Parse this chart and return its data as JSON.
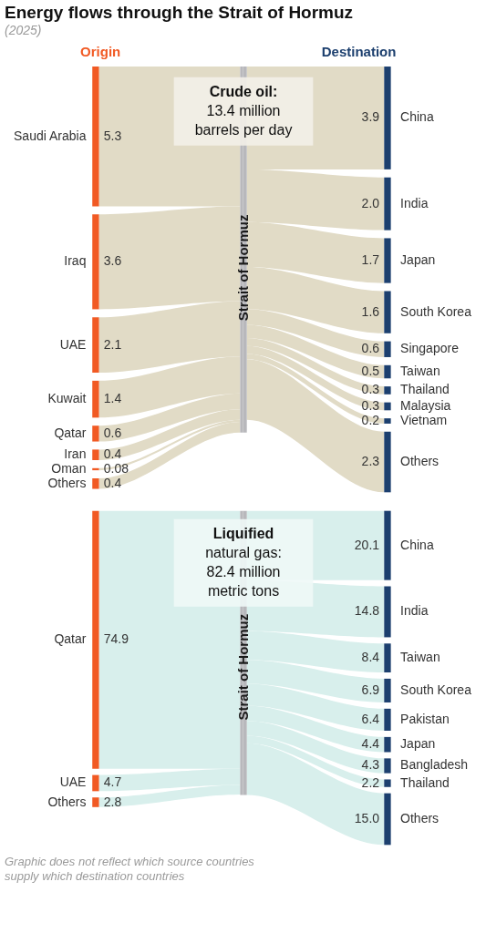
{
  "chart_data": [
    {
      "type": "other",
      "title": "Energy flows through the Strait of Hormuz",
      "subtitle": "(2025)",
      "xlabel": "Origin",
      "color": "#e1dbc6",
      "categories": [
        "Saudi Arabia",
        "Iraq",
        "UAE",
        "Kuwait",
        "Qatar",
        "Iran",
        "Oman",
        "Others"
      ],
      "values": [
        5.3,
        3.6,
        2.1,
        1.4,
        0.6,
        0.4,
        0.08,
        0.4
      ],
      "value_labels": [
        "5.3",
        "3.6",
        "2.1",
        "1.4",
        "0.6",
        "0.4",
        "0.08",
        "0.4"
      ]
    },
    {
      "type": "other",
      "xlabel": "Destination",
      "ylabel": "Strait of Hormuz",
      "color": "#e1dbc6",
      "annotations": [
        "Crude oil:\n13.4 million\nbarrels per day"
      ],
      "categories": [
        "China",
        "India",
        "Japan",
        "South Korea",
        "Singapore",
        "Taiwan",
        "Thailand",
        "Malaysia",
        "Vietnam",
        "Others"
      ],
      "values": [
        3.9,
        2.0,
        1.7,
        1.6,
        0.6,
        0.5,
        0.3,
        0.3,
        0.2,
        2.3
      ],
      "value_labels": [
        "3.9",
        "2.0",
        "1.7",
        "1.6",
        "0.6",
        "0.5",
        "0.3",
        "0.3",
        "0.2",
        "2.3"
      ]
    },
    {
      "type": "other",
      "color": "#d8efec",
      "annotations": [
        "Graphic does not reflect which source countries supply which destination countries"
      ],
      "categories": [
        "Qatar",
        "UAE",
        "Others"
      ],
      "values": [
        74.9,
        4.7,
        2.8
      ],
      "value_labels": [
        "74.9",
        "4.7",
        "2.8"
      ]
    },
    {
      "type": "other",
      "ylabel": "Strait of Hormuz",
      "color": "#d8efec",
      "annotations": [
        "Liquified\nnatural gas:\n82.4 million\nmetric tons"
      ],
      "categories": [
        "China",
        "India",
        "Taiwan",
        "South Korea",
        "Pakistan",
        "Japan",
        "Bangladesh",
        "Thailand",
        "Others"
      ],
      "values": [
        20.1,
        14.8,
        8.4,
        6.9,
        6.4,
        4.4,
        4.3,
        2.2,
        15.0
      ],
      "value_labels": [
        "20.1",
        "14.8",
        "8.4",
        "6.9",
        "6.4",
        "4.4",
        "4.3",
        "2.2",
        "15.0"
      ]
    }
  ]
}
